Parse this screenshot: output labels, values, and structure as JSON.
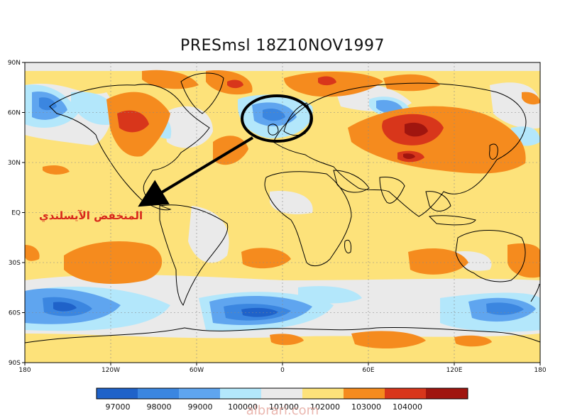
{
  "title": "PRESmsl 18Z10NOV1997",
  "annotation_label": "المنخفض الآيسلندي",
  "watermark": "albrari.com",
  "axes": {
    "lat_labels": [
      "90N",
      "60N",
      "30N",
      "EQ",
      "30S",
      "60S",
      "90S"
    ],
    "lon_labels": [
      "180",
      "120W",
      "60W",
      "0",
      "60E",
      "120E",
      "180"
    ]
  },
  "colorbar": {
    "labels": [
      "97000",
      "98000",
      "99000",
      "100000",
      "101000",
      "102000",
      "103000",
      "104000"
    ],
    "colors": [
      "#1f62c9",
      "#3b86e0",
      "#5fa5ef",
      "#b3e7fb",
      "#eaeaea",
      "#fde27a",
      "#f58b1e",
      "#d8361b",
      "#a0150f"
    ]
  },
  "colors": {
    "background_field": "#fde27a",
    "ocean_low": "#5fa5ef",
    "high": "#f58b1e",
    "very_high": "#d8361b",
    "circle_marker": "#000000",
    "annotation": "#d8261b"
  },
  "icons": [
    "circle-marker",
    "arrow-pointer"
  ]
}
